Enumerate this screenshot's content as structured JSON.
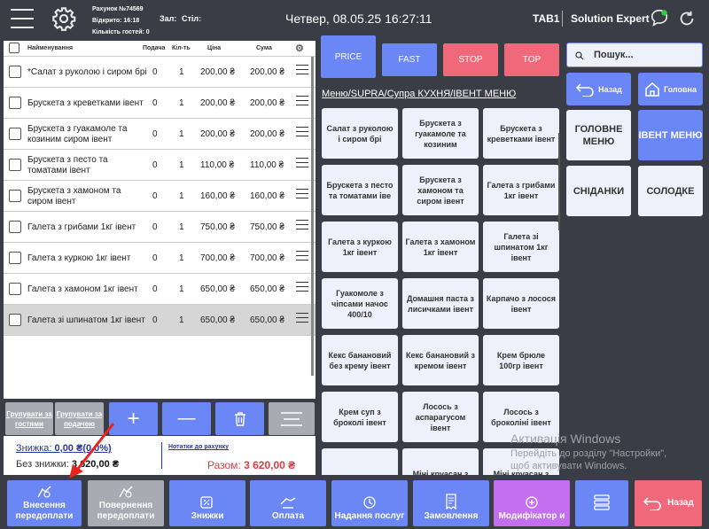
{
  "topbar": {
    "order_no": "Рахунок №74569",
    "opened": "Відкрито: 16:18",
    "guests": "Кількість гостей: 0",
    "hall": "Зал:",
    "table": "Стіл:",
    "datetime": "Четвер, 08.05.25 16:27:11",
    "tab": "TAB1",
    "user": "Solution Expert"
  },
  "order": {
    "headers": {
      "name": "Найменування",
      "serve": "Подача",
      "qty": "Кіл-ть",
      "price": "Ціна",
      "sum": "Сума"
    },
    "rows": [
      {
        "name": "*Салат з руколою і сиром брі",
        "serve": "0",
        "qty": "1",
        "price": "200,00 ₴",
        "sum": "200,00 ₴"
      },
      {
        "name": "Брускета з креветками івент",
        "serve": "0",
        "qty": "1",
        "price": "200,00 ₴",
        "sum": "200,00 ₴"
      },
      {
        "name": "Брускета з гуакамоле та козиним сиром івент",
        "serve": "0",
        "qty": "1",
        "price": "200,00 ₴",
        "sum": "200,00 ₴"
      },
      {
        "name": "Брускета з песто та томатами івент",
        "serve": "0",
        "qty": "1",
        "price": "110,00 ₴",
        "sum": "110,00 ₴"
      },
      {
        "name": "Брускета з хамоном та сиром івент",
        "serve": "0",
        "qty": "1",
        "price": "160,00 ₴",
        "sum": "160,00 ₴"
      },
      {
        "name": "Галета з грибами 1кг івент",
        "serve": "0",
        "qty": "1",
        "price": "750,00 ₴",
        "sum": "750,00 ₴"
      },
      {
        "name": "Галета з куркою 1кг івент",
        "serve": "0",
        "qty": "1",
        "price": "700,00 ₴",
        "sum": "700,00 ₴"
      },
      {
        "name": "Галета з хамоном 1кг івент",
        "serve": "0",
        "qty": "1",
        "price": "650,00 ₴",
        "sum": "650,00 ₴"
      },
      {
        "name": "Галета зі шпинатом 1кг івент",
        "serve": "0",
        "qty": "1",
        "price": "650,00 ₴",
        "sum": "650,00 ₴"
      }
    ]
  },
  "tools": {
    "group_guests": "Групувати за гостями",
    "group_serve": "Групувати за подачею",
    "plus": "+",
    "minus": "—"
  },
  "summary": {
    "discount_label": "Знижка: ",
    "discount_value": "0,00 ₴(0,0%)",
    "no_discount_label": "Без знижки: ",
    "no_discount_value": "3 620,00 ₴",
    "notes": "Нотатки до рахунку",
    "total_label": "Разом: ",
    "total_value": "3 620,00 ₴"
  },
  "tabs": {
    "price": "PRICE",
    "fast": "FAST",
    "stop": "STOP",
    "top": "TOP"
  },
  "breadcrumb": "Меню/SUPRA/Супра КУХНЯ/ІВЕНТ МЕНЮ",
  "menu_tiles": [
    "Салат з руколою і сиром брі",
    "Брускета з гуакамоле та козиним",
    "Брускета з креветками івент",
    "Брускета з песто та томатами іве",
    "Брускета з хамоном та сиром івент",
    "Галета з грибами 1кг івент",
    "Галета з куркою 1кг івент",
    "Галета з хамоном 1кг івент",
    "Галета зі шпинатом 1кг івент",
    "Гуакомоле з чіпсами начос 400/10",
    "Домашня паста з лисичками івент",
    "Карпачо з лосося івент",
    "Кекс банановий без крему івент",
    "Кекс банановий з кремом івент",
    "Крем брюле 100гр івент",
    "Крем суп з броколі івент",
    "Лосось з аспарагусом івент",
    "Лосось з броколіні івент",
    "",
    "Міні круасан з",
    "Міні круасан з"
  ],
  "search": {
    "placeholder": "Пошук..."
  },
  "right": {
    "back": "Назад",
    "home": "Головна",
    "main_menu": "ГОЛОВНЕ МЕНЮ",
    "event_menu": "ІВЕНТ МЕНЮ",
    "breakfasts": "СНІДАНКИ",
    "salty": "СОЛОДКЕ"
  },
  "watermark": {
    "title": "Активація Windows",
    "line1": "Перейдіть до розділу \"Настройки\",",
    "line2": "щоб активувати Windows."
  },
  "bottom": {
    "prepay": "Внесення передоплати",
    "refund_prepay": "Повернення передоплати",
    "discounts": "Знижки",
    "payment": "Оплата",
    "service": "Надання послуг",
    "orders": "Замовлення",
    "modifier": "Модифікатор и",
    "back": "Назад"
  },
  "colors": {
    "accent": "#6b86f5",
    "stop": "#f0697a",
    "purple": "#c46ff0",
    "back_red": "#f0697a",
    "dark": "#3a3d45"
  }
}
